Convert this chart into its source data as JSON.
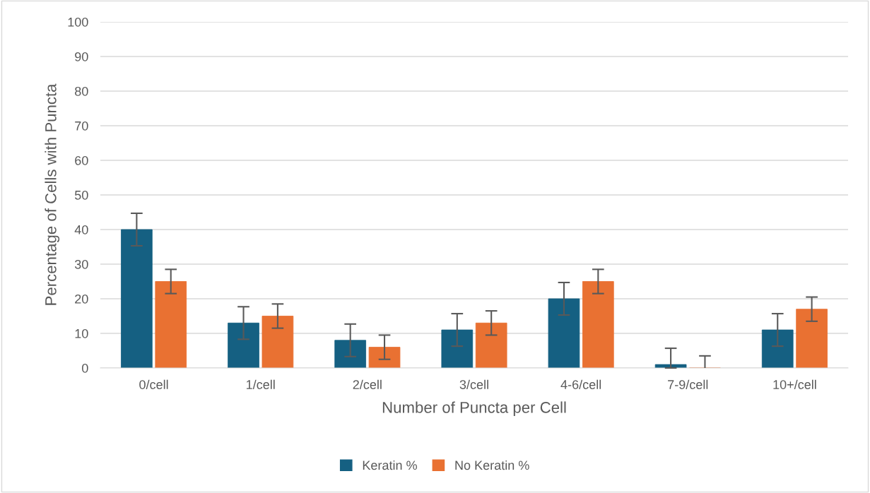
{
  "chart_data": {
    "type": "bar",
    "xlabel": "Number of Puncta per Cell",
    "ylabel": "Percentage of Cells with Puncta",
    "categories": [
      "0/cell",
      "1/cell",
      "2/cell",
      "3/cell",
      "4-6/cell",
      "7-9/cell",
      "10+/cell"
    ],
    "series": [
      {
        "name": "Keratin %",
        "color": "#156082",
        "values": [
          40,
          13,
          8,
          11,
          20,
          1,
          11
        ],
        "errors": [
          4.7,
          4.7,
          4.7,
          4.7,
          4.7,
          [
            0,
            5.7
          ],
          4.7
        ]
      },
      {
        "name": "No Keratin %",
        "color": "#e97132",
        "values": [
          25,
          15,
          6,
          13,
          25,
          0,
          17
        ],
        "errors": [
          3.5,
          3.5,
          3.5,
          3.5,
          3.5,
          [
            0,
            3.5
          ],
          3.5
        ]
      }
    ],
    "ylim": [
      0,
      100
    ],
    "yticks": [
      0,
      10,
      20,
      30,
      40,
      50,
      60,
      70,
      80,
      90,
      100
    ],
    "grid": "y",
    "legend": "bottom"
  }
}
